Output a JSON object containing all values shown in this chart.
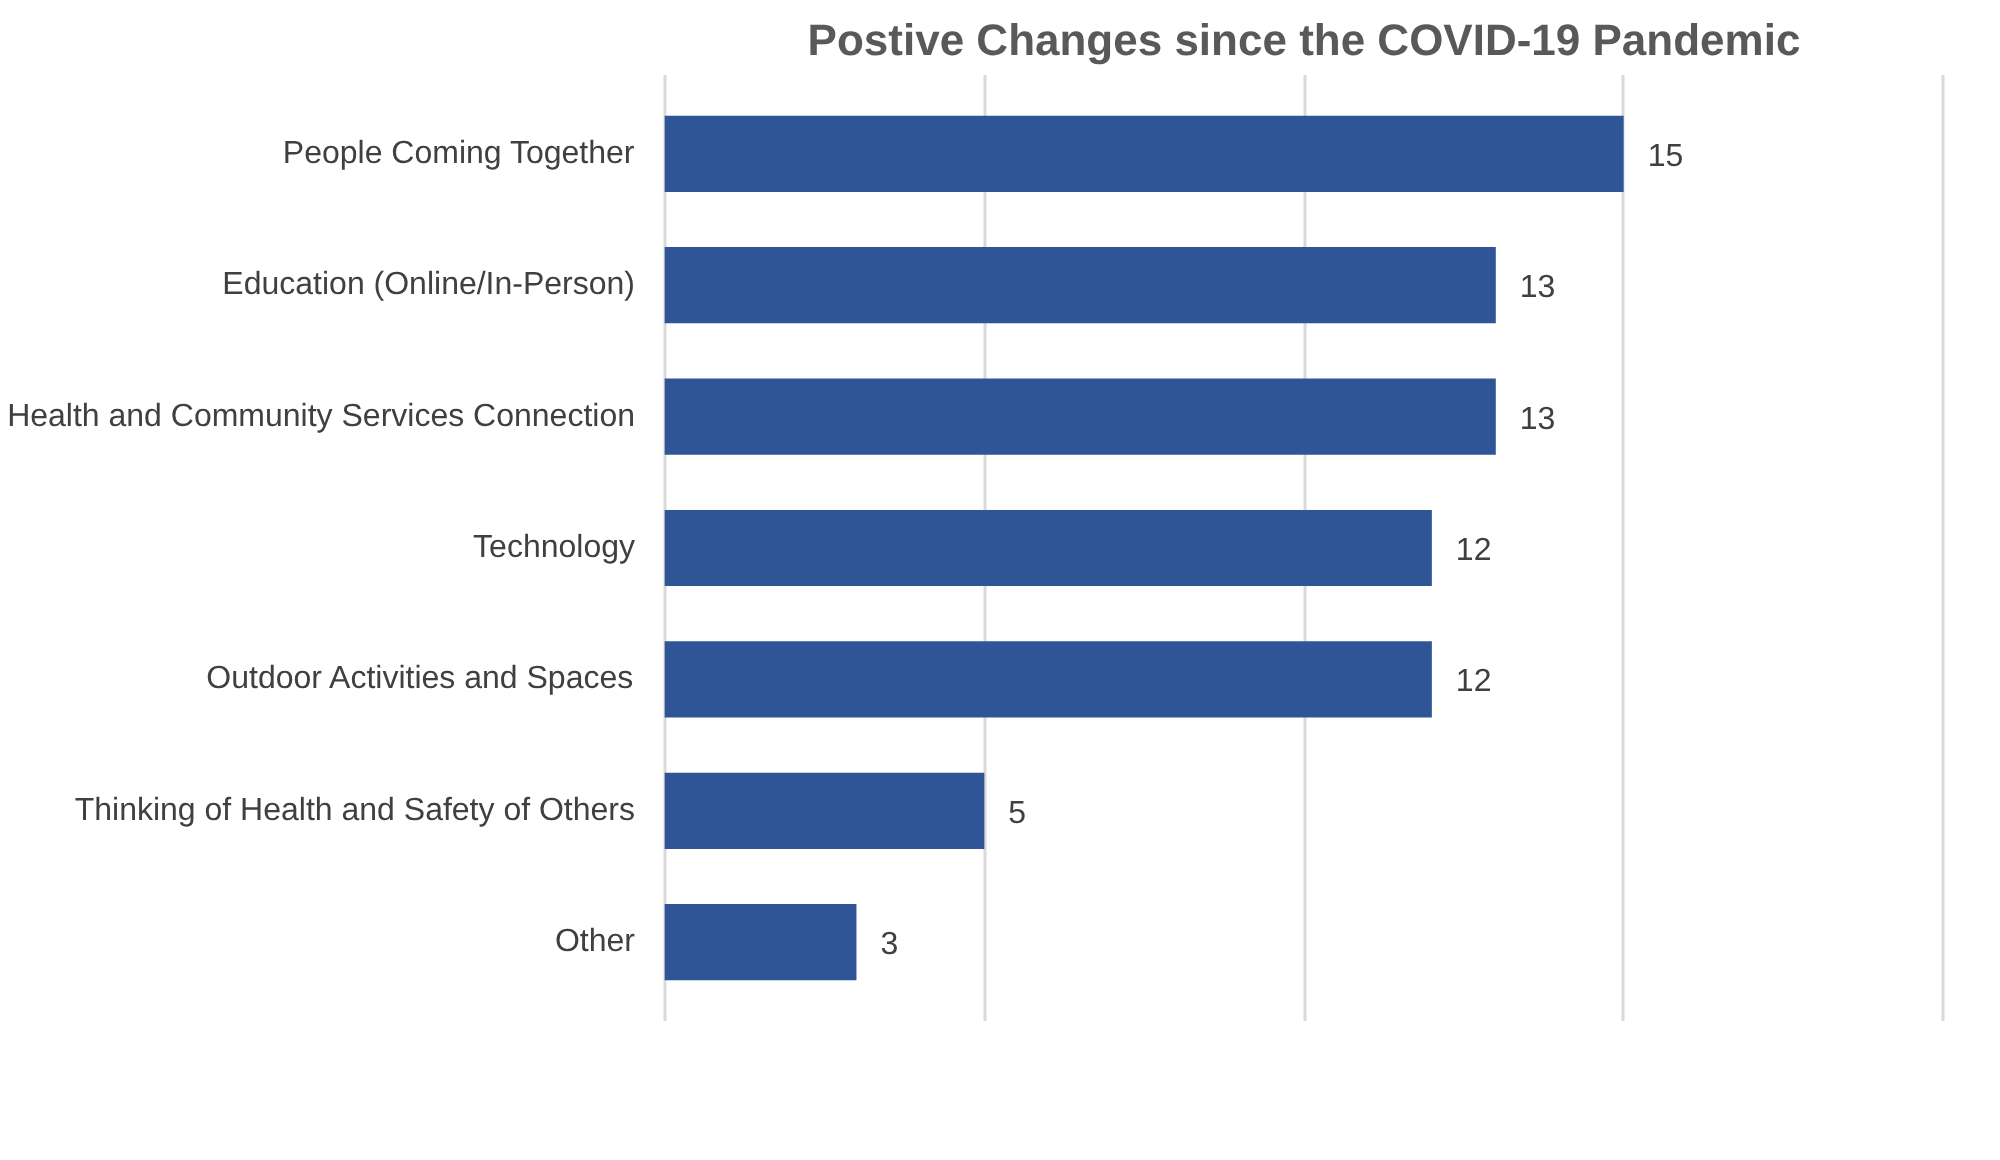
{
  "chart_data": {
    "type": "bar",
    "orientation": "horizontal",
    "title": "Postive Changes since the COVID-19 Pandemic",
    "categories": [
      "People Coming Together",
      "Education (Online/In-Person)",
      "Health and Community Services Connection",
      "Technology",
      "Outdoor Activities and Spaces",
      "Thinking of Health and Safety of Others",
      "Other"
    ],
    "values": [
      15,
      13,
      13,
      12,
      12,
      5,
      3
    ],
    "color": "#2f5597",
    "xlim": [
      0,
      20
    ],
    "xticks": [
      {
        "value": 0,
        "label": null
      },
      {
        "value": 5,
        "label": null
      },
      {
        "value": 10,
        "label": null
      },
      {
        "value": 15,
        "label": null
      },
      {
        "value": 20,
        "label": null
      }
    ],
    "tick_labels": "y",
    "grid": "x",
    "data_labels": true
  }
}
